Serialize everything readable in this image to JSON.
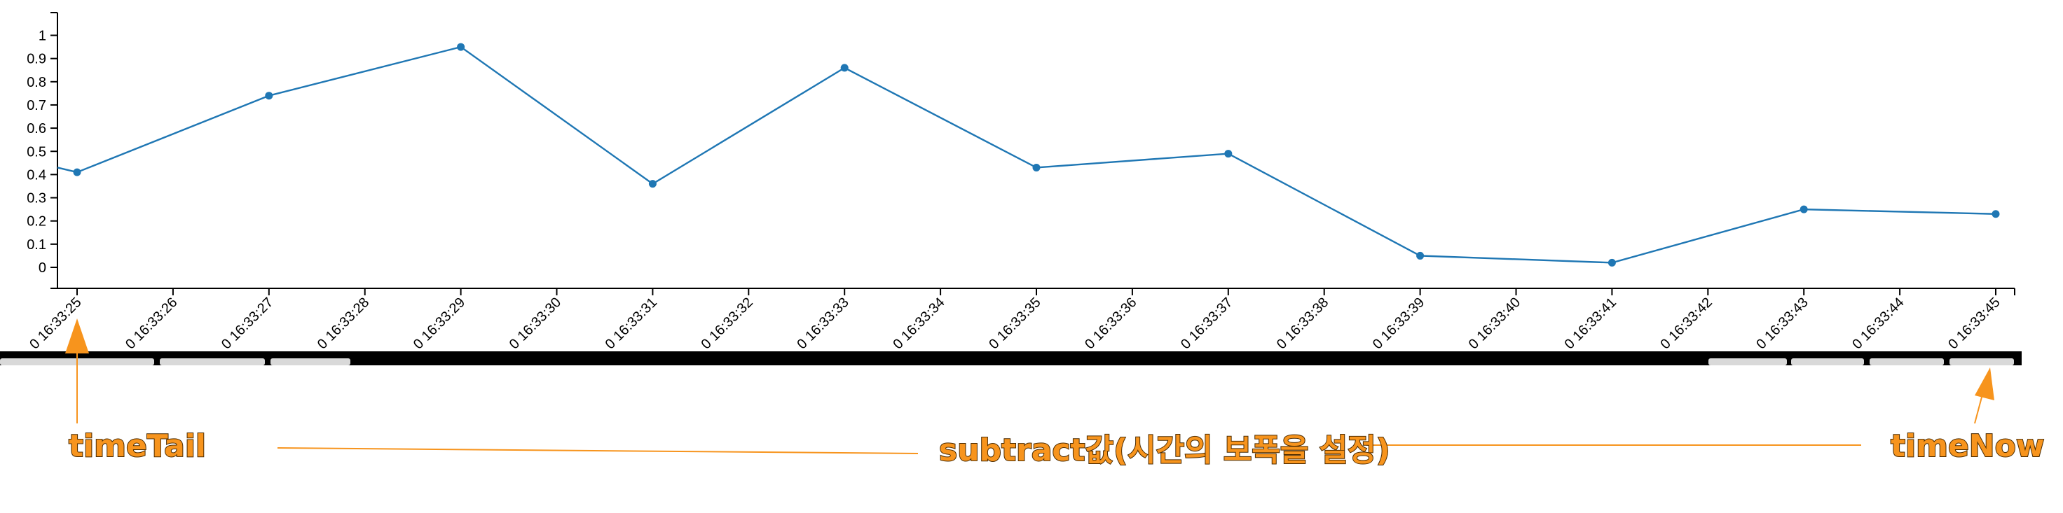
{
  "chart_data": {
    "type": "line",
    "x": [
      "16:33:25",
      "16:33:27",
      "16:33:29",
      "16:33:31",
      "16:33:33",
      "16:33:35",
      "16:33:37",
      "16:33:39",
      "16:33:41",
      "16:33:43",
      "16:33:45"
    ],
    "series": [
      {
        "values": [
          0.41,
          0.74,
          0.95,
          0.36,
          0.86,
          0.43,
          0.49,
          0.05,
          0.02,
          0.25,
          0.23
        ]
      }
    ],
    "leading_value": 0.43,
    "x_ticks": [
      "16:33:25",
      "16:33:26",
      "16:33:27",
      "16:33:28",
      "16:33:29",
      "16:33:30",
      "16:33:31",
      "16:33:32",
      "16:33:33",
      "16:33:34",
      "16:33:35",
      "16:33:36",
      "16:33:37",
      "16:33:38",
      "16:33:39",
      "16:33:40",
      "16:33:41",
      "16:33:42",
      "16:33:43",
      "16:33:44",
      "16:33:45"
    ],
    "x_tick_labels": [
      "0 16:33:25",
      "0 16:33:26",
      "0 16:33:27",
      "0 16:33:28",
      "0 16:33:29",
      "0 16:33:30",
      "0 16:33:31",
      "0 16:33:32",
      "0 16:33:33",
      "0 16:33:34",
      "0 16:33:35",
      "0 16:33:36",
      "0 16:33:37",
      "0 16:33:38",
      "0 16:33:39",
      "0 16:33:40",
      "0 16:33:41",
      "0 16:33:42",
      "0 16:33:43",
      "0 16:33:44",
      "0 16:33:45"
    ],
    "y_ticks": [
      "0",
      "0.1",
      "0.2",
      "0.3",
      "0.4",
      "0.5",
      "0.6",
      "0.7",
      "0.8",
      "0.9",
      "1"
    ],
    "ylim": [
      -0.06,
      1.1
    ],
    "title": "",
    "xlabel": "",
    "ylabel": "",
    "grid": false,
    "legend": "none"
  },
  "annotations": {
    "time_tail": "timeTail",
    "subtract": "subtract값(시간의 보폭을 설정)",
    "time_now": "timeNow"
  },
  "colors": {
    "series": "#1f77b4",
    "annotation": "#f7941d",
    "toolbar": "#000000",
    "axis": "#000000"
  }
}
